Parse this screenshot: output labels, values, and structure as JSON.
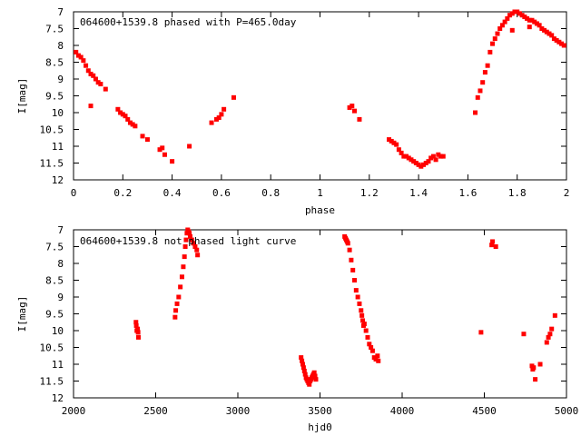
{
  "chart_data": [
    {
      "type": "scatter",
      "title": "064600+1539.8 phased with P=465.0day",
      "xlabel": "phase",
      "ylabel": "I[mag]",
      "xlim": [
        0,
        2
      ],
      "ylim": [
        12,
        7
      ],
      "y_inverted": true,
      "grid": false,
      "marker_color": "#ff0000",
      "xticks": [
        "0",
        "0.2",
        "0.4",
        "0.6",
        "0.8",
        "1",
        "1.2",
        "1.4",
        "1.6",
        "1.8",
        "2"
      ],
      "yticks": [
        "7",
        "7.5",
        "8",
        "8.5",
        "9",
        "9.5",
        "10",
        "10.5",
        "11",
        "11.5",
        "12"
      ],
      "series": [
        {
          "x": [
            0.01,
            0.02,
            0.03,
            0.04,
            0.05,
            0.06,
            0.07,
            0.08,
            0.09,
            0.1,
            0.11,
            0.13,
            0.07,
            0.18,
            0.19,
            0.2,
            0.21,
            0.22,
            0.23,
            0.24,
            0.25,
            0.28,
            0.3,
            0.35,
            0.36,
            0.37,
            0.4,
            0.47,
            0.56,
            0.58,
            0.59,
            0.6,
            0.61,
            0.65,
            1.12,
            1.13,
            1.14,
            1.16,
            1.28,
            1.29,
            1.3,
            1.31,
            1.32,
            1.33,
            1.34,
            1.35,
            1.36,
            1.37,
            1.38,
            1.39,
            1.4,
            1.41,
            1.42,
            1.43,
            1.44,
            1.45,
            1.46,
            1.47,
            1.48,
            1.49,
            1.5,
            1.63,
            1.64,
            1.65,
            1.66,
            1.67,
            1.68,
            1.69,
            1.7,
            1.71,
            1.72,
            1.73,
            1.74,
            1.75,
            1.76,
            1.77,
            1.78,
            1.79,
            1.8,
            1.81,
            1.82,
            1.83,
            1.84,
            1.85,
            1.86,
            1.87,
            1.88,
            1.89,
            1.9,
            1.91,
            1.92,
            1.93,
            1.94,
            1.95,
            1.96,
            1.97,
            1.98,
            1.99,
            1.78,
            1.85
          ],
          "y": [
            8.2,
            8.3,
            8.35,
            8.45,
            8.6,
            8.75,
            8.85,
            8.9,
            9.0,
            9.1,
            9.15,
            9.3,
            9.8,
            9.9,
            10.0,
            10.05,
            10.1,
            10.2,
            10.3,
            10.35,
            10.4,
            10.7,
            10.8,
            11.1,
            11.05,
            11.25,
            11.45,
            11.0,
            10.3,
            10.2,
            10.15,
            10.05,
            9.9,
            9.55,
            9.85,
            9.8,
            9.95,
            10.2,
            10.8,
            10.85,
            10.9,
            10.95,
            11.1,
            11.2,
            11.3,
            11.3,
            11.35,
            11.4,
            11.45,
            11.5,
            11.55,
            11.6,
            11.55,
            11.5,
            11.45,
            11.35,
            11.3,
            11.4,
            11.25,
            11.3,
            11.3,
            10.0,
            9.55,
            9.35,
            9.1,
            8.8,
            8.6,
            8.2,
            7.95,
            7.8,
            7.65,
            7.5,
            7.4,
            7.3,
            7.2,
            7.1,
            7.05,
            7.0,
            7.0,
            7.05,
            7.1,
            7.15,
            7.2,
            7.25,
            7.25,
            7.3,
            7.35,
            7.4,
            7.5,
            7.55,
            7.6,
            7.65,
            7.7,
            7.8,
            7.85,
            7.9,
            7.95,
            8.0,
            7.55,
            7.45
          ]
        }
      ]
    },
    {
      "type": "scatter",
      "title": "064600+1539.8 not phased light curve",
      "xlabel": "hjd0",
      "ylabel": "I[mag]",
      "xlim": [
        2000,
        5000
      ],
      "ylim": [
        12,
        7
      ],
      "y_inverted": true,
      "grid": false,
      "marker_color": "#ff0000",
      "xticks": [
        "2000",
        "2500",
        "3000",
        "3500",
        "4000",
        "4500",
        "5000"
      ],
      "yticks": [
        "7",
        "7.5",
        "8",
        "8.5",
        "9",
        "9.5",
        "10",
        "10.5",
        "11",
        "11.5",
        "12"
      ],
      "series": [
        {
          "x": [
            2380,
            2382,
            2385,
            2390,
            2393,
            2395,
            2618,
            2622,
            2630,
            2640,
            2650,
            2660,
            2668,
            2675,
            2680,
            2685,
            2690,
            2695,
            2700,
            2705,
            2710,
            2720,
            2730,
            2740,
            2750,
            2755,
            3385,
            3390,
            3395,
            3400,
            3405,
            3410,
            3415,
            3420,
            3425,
            3430,
            3435,
            3440,
            3445,
            3450,
            3455,
            3460,
            3465,
            3470,
            3475,
            3650,
            3655,
            3660,
            3665,
            3670,
            3680,
            3690,
            3700,
            3710,
            3720,
            3730,
            3740,
            3750,
            3755,
            3760,
            3765,
            3770,
            3780,
            3790,
            3800,
            3810,
            3820,
            3830,
            3840,
            3850,
            3855,
            4480,
            4545,
            4550,
            4570,
            4740,
            4790,
            4795,
            4800,
            4810,
            4840,
            4880,
            4890,
            4900,
            4910,
            4930
          ],
          "y": [
            9.75,
            9.85,
            10.0,
            9.95,
            10.05,
            10.2,
            9.6,
            9.4,
            9.2,
            9.0,
            8.7,
            8.4,
            8.1,
            7.8,
            7.5,
            7.3,
            7.1,
            7.0,
            7.05,
            7.1,
            7.2,
            7.3,
            7.4,
            7.5,
            7.6,
            7.75,
            10.8,
            10.9,
            11.0,
            11.1,
            11.2,
            11.3,
            11.4,
            11.45,
            11.5,
            11.55,
            11.6,
            11.5,
            11.45,
            11.4,
            11.35,
            11.3,
            11.25,
            11.35,
            11.45,
            7.2,
            7.25,
            7.3,
            7.35,
            7.4,
            7.6,
            7.9,
            8.2,
            8.5,
            8.8,
            9.0,
            9.2,
            9.4,
            9.55,
            9.7,
            9.85,
            9.8,
            10.0,
            10.2,
            10.4,
            10.5,
            10.6,
            10.8,
            10.85,
            10.75,
            10.9,
            10.05,
            7.45,
            7.35,
            7.5,
            10.1,
            11.05,
            11.15,
            11.1,
            11.45,
            11.0,
            10.35,
            10.2,
            10.1,
            9.95,
            9.55
          ]
        }
      ]
    }
  ]
}
